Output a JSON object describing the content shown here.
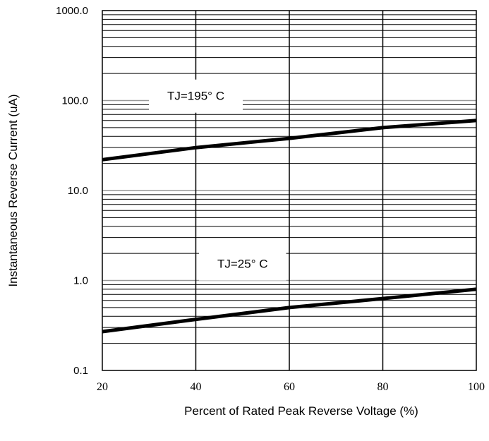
{
  "chart_data": {
    "type": "line",
    "title": "",
    "xlabel": "Percent of Rated Peak Reverse Voltage (%)",
    "ylabel": "Instantaneous Reverse Current (uA)",
    "xlim": [
      20,
      100
    ],
    "ylim": [
      0.1,
      1000
    ],
    "yscale": "log",
    "grid": true,
    "x_ticks": [
      "20",
      "40",
      "60",
      "80",
      "100"
    ],
    "y_ticks": [
      "0.1",
      "1.0",
      "10.0",
      "100.0",
      "1000.0"
    ],
    "series": [
      {
        "name": "TJ=195° C",
        "x": [
          20,
          40,
          60,
          80,
          100
        ],
        "y": [
          22,
          30,
          38,
          50,
          60
        ],
        "label_at": [
          40,
          110
        ]
      },
      {
        "name": "TJ=25° C",
        "x": [
          20,
          40,
          60,
          80,
          100
        ],
        "y": [
          0.27,
          0.37,
          0.5,
          0.63,
          0.8
        ],
        "label_at": [
          50,
          1.5
        ]
      }
    ]
  }
}
